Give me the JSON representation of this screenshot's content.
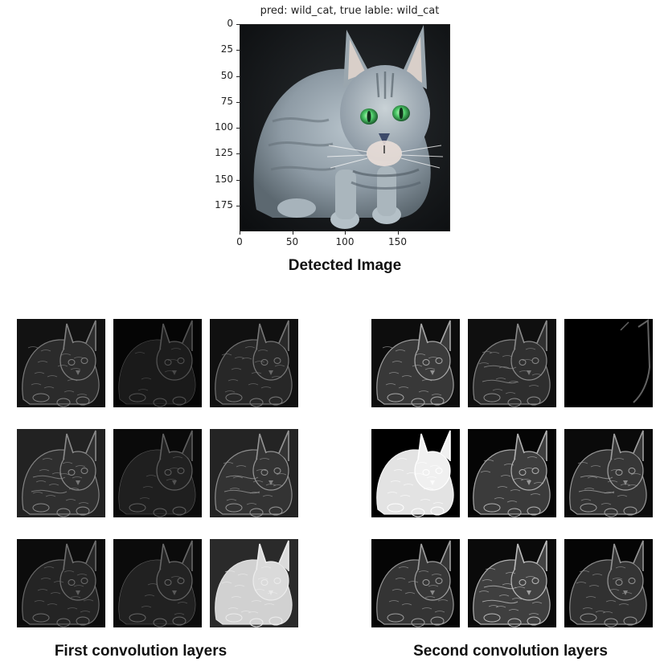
{
  "plot": {
    "title": "pred: wild_cat, true lable: wild_cat",
    "y_ticks": [
      "0",
      "25",
      "50",
      "75",
      "100",
      "125",
      "150",
      "175"
    ],
    "x_ticks": [
      "0",
      "50",
      "100",
      "150"
    ],
    "caption": "Detected Image"
  },
  "left_panel": {
    "caption": "First convolution layers",
    "tiles": [
      {
        "brightness": 0.35,
        "bg": "#121212",
        "style": "edge"
      },
      {
        "brightness": 0.12,
        "bg": "#050505",
        "style": "dark"
      },
      {
        "brightness": 0.3,
        "bg": "#101010",
        "style": "edge"
      },
      {
        "brightness": 0.4,
        "bg": "#222222",
        "style": "emboss"
      },
      {
        "brightness": 0.18,
        "bg": "#0a0a0a",
        "style": "dark"
      },
      {
        "brightness": 0.45,
        "bg": "#242424",
        "style": "emboss"
      },
      {
        "brightness": 0.25,
        "bg": "#0c0c0c",
        "style": "edge"
      },
      {
        "brightness": 0.22,
        "bg": "#0b0b0b",
        "style": "dark"
      },
      {
        "brightness": 0.9,
        "bg": "#2a2a2a",
        "style": "bright"
      }
    ]
  },
  "right_panel": {
    "caption": "Second convolution layers",
    "tiles": [
      {
        "brightness": 0.55,
        "bg": "#0d0d0d",
        "style": "edge"
      },
      {
        "brightness": 0.4,
        "bg": "#0f0f0f",
        "style": "emboss"
      },
      {
        "brightness": 0.2,
        "bg": "#000000",
        "style": "rim"
      },
      {
        "brightness": 1.0,
        "bg": "#000000",
        "style": "bright"
      },
      {
        "brightness": 0.6,
        "bg": "#050505",
        "style": "edge"
      },
      {
        "brightness": 0.5,
        "bg": "#0a0a0a",
        "style": "emboss"
      },
      {
        "brightness": 0.5,
        "bg": "#050505",
        "style": "edge"
      },
      {
        "brightness": 0.65,
        "bg": "#0a0a0a",
        "style": "emboss"
      },
      {
        "brightness": 0.45,
        "bg": "#050505",
        "style": "edge"
      }
    ]
  },
  "colors": {
    "photo_bg": "#16191c",
    "cat_fur": "#8c99a3",
    "cat_eye": "#46c46a"
  }
}
